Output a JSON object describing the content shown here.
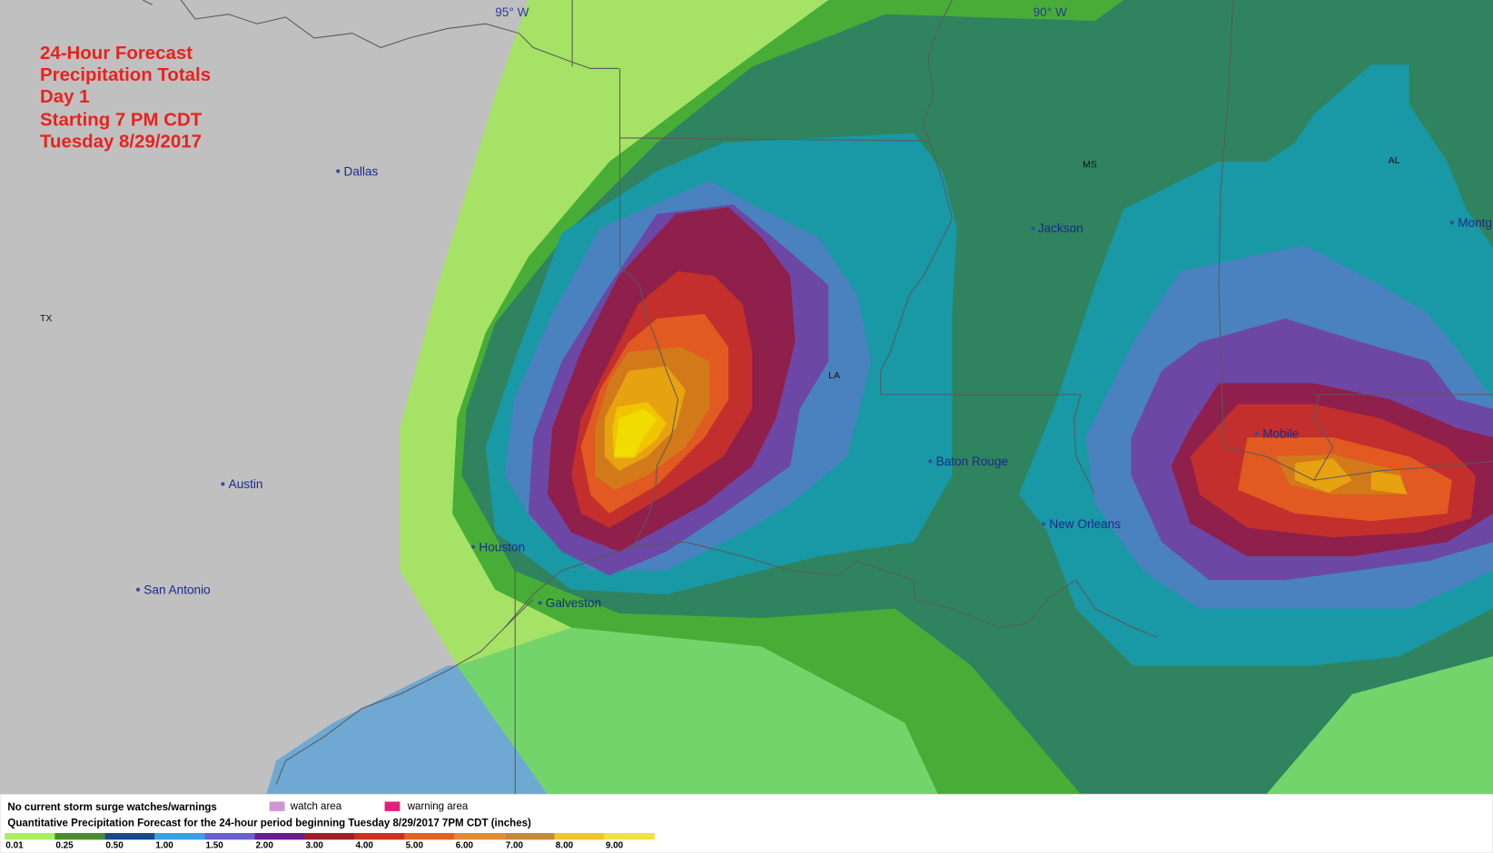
{
  "header": {
    "lines": [
      "24-Hour Forecast",
      "Precipitation Totals",
      "Day 1",
      "Starting 7 PM CDT",
      "Tuesday 8/29/2017"
    ]
  },
  "longitude_labels": [
    "95° W",
    "90° W"
  ],
  "states": [
    "TX",
    "LA",
    "MS",
    "AL"
  ],
  "cities": [
    "Dallas",
    "Austin",
    "San Antonio",
    "Houston",
    "Galveston",
    "Jackson",
    "Baton Rouge",
    "New Orleans",
    "Mobile",
    "Montg"
  ],
  "legend": {
    "surge_note": "No current storm surge watches/warnings",
    "watch": "watch area",
    "warning": "warning area",
    "qpf_title": "Quantitative Precipitation Forecast for the 24-hour period beginning Tuesday 8/29/2017 7PM CDT (inches)",
    "scale": [
      {
        "label": "0.01",
        "color": "#a6f05c"
      },
      {
        "label": "0.25",
        "color": "#4a8c2c"
      },
      {
        "label": "0.50",
        "color": "#1a4a86"
      },
      {
        "label": "1.00",
        "color": "#3aa0e4"
      },
      {
        "label": "1.50",
        "color": "#6a62cc"
      },
      {
        "label": "2.00",
        "color": "#6a1e8e"
      },
      {
        "label": "3.00",
        "color": "#a01e28"
      },
      {
        "label": "4.00",
        "color": "#c8321e"
      },
      {
        "label": "5.00",
        "color": "#e06222"
      },
      {
        "label": "6.00",
        "color": "#e08a34"
      },
      {
        "label": "7.00",
        "color": "#c4893a"
      },
      {
        "label": "8.00",
        "color": "#f2c428"
      },
      {
        "label": "9.00",
        "color": "#f2e044"
      }
    ]
  }
}
